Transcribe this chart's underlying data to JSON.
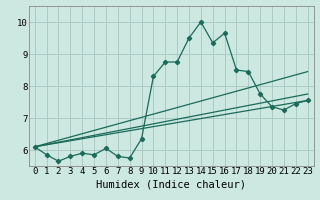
{
  "title": "",
  "xlabel": "Humidex (Indice chaleur)",
  "bg_color": "#cce8e0",
  "grid_color": "#aaccc4",
  "line_color": "#1a6b5a",
  "xlim": [
    -0.5,
    23.5
  ],
  "ylim": [
    5.5,
    10.5
  ],
  "yticks": [
    6,
    7,
    8,
    9,
    10
  ],
  "xticks": [
    0,
    1,
    2,
    3,
    4,
    5,
    6,
    7,
    8,
    9,
    10,
    11,
    12,
    13,
    14,
    15,
    16,
    17,
    18,
    19,
    20,
    21,
    22,
    23
  ],
  "series1_x": [
    0,
    1,
    2,
    3,
    4,
    5,
    6,
    7,
    8,
    9,
    10,
    11,
    12,
    13,
    14,
    15,
    16,
    17,
    18,
    19,
    20,
    21,
    22,
    23
  ],
  "series1_y": [
    6.1,
    5.85,
    5.65,
    5.8,
    5.9,
    5.85,
    6.05,
    5.8,
    5.75,
    6.35,
    8.3,
    8.75,
    8.75,
    9.5,
    10.0,
    9.35,
    9.65,
    8.5,
    8.45,
    7.75,
    7.35,
    7.25,
    7.45,
    7.55
  ],
  "series2_x": [
    0,
    23
  ],
  "series2_y": [
    6.1,
    7.55
  ],
  "series3_x": [
    0,
    23
  ],
  "series3_y": [
    6.1,
    7.75
  ],
  "series4_x": [
    0,
    23
  ],
  "series4_y": [
    6.1,
    8.45
  ],
  "spine_color": "#888888",
  "font_size_ticks": 6.5,
  "font_size_xlabel": 7.5,
  "line_width": 0.9,
  "marker_size": 2.2
}
